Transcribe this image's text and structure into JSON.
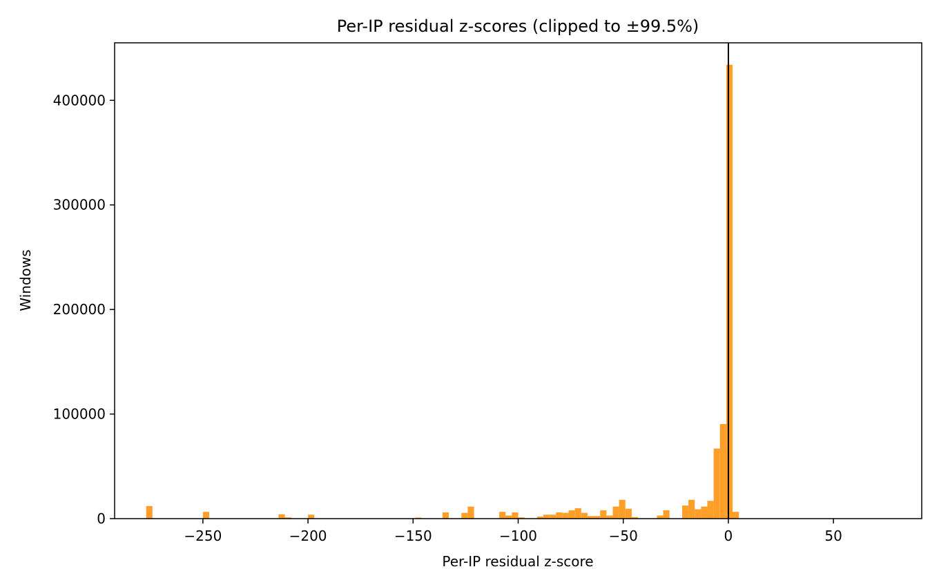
{
  "chart_data": {
    "type": "bar",
    "title": "Per-IP residual z-scores (clipped to ±99.5%)",
    "xlabel": "Per-IP residual z-score",
    "ylabel": "Windows",
    "xlim": [
      -292,
      92
    ],
    "ylim": [
      0,
      455000
    ],
    "xticks": [
      -250,
      -200,
      -150,
      -100,
      -50,
      0,
      50
    ],
    "xtick_labels": [
      "−250",
      "−200",
      "−150",
      "−100",
      "−50",
      "0",
      "50"
    ],
    "yticks": [
      0,
      100000,
      200000,
      300000,
      400000
    ],
    "ytick_labels": [
      "0",
      "100000",
      "200000",
      "300000",
      "400000"
    ],
    "bar_color": "#ff9f2a",
    "vline_x": 0,
    "vline_color": "#000000",
    "grid": false,
    "bin_width": 3.0,
    "bins": [
      {
        "x": -275.5,
        "value": 12000
      },
      {
        "x": -248.5,
        "value": 6500
      },
      {
        "x": -212.5,
        "value": 4200
      },
      {
        "x": -209.5,
        "value": 1200
      },
      {
        "x": -198.5,
        "value": 3800
      },
      {
        "x": -147.5,
        "value": 1000
      },
      {
        "x": -134.5,
        "value": 6000
      },
      {
        "x": -125.5,
        "value": 5500
      },
      {
        "x": -122.5,
        "value": 11500
      },
      {
        "x": -107.5,
        "value": 6500
      },
      {
        "x": -104.5,
        "value": 3000
      },
      {
        "x": -101.5,
        "value": 6000
      },
      {
        "x": -98.5,
        "value": 1200
      },
      {
        "x": -89.5,
        "value": 2000
      },
      {
        "x": -86.5,
        "value": 3800
      },
      {
        "x": -83.5,
        "value": 3800
      },
      {
        "x": -80.5,
        "value": 6000
      },
      {
        "x": -77.5,
        "value": 5500
      },
      {
        "x": -74.5,
        "value": 8000
      },
      {
        "x": -71.5,
        "value": 10000
      },
      {
        "x": -68.5,
        "value": 5500
      },
      {
        "x": -65.5,
        "value": 2500
      },
      {
        "x": -62.5,
        "value": 2500
      },
      {
        "x": -59.5,
        "value": 8000
      },
      {
        "x": -56.5,
        "value": 3000
      },
      {
        "x": -53.5,
        "value": 11500
      },
      {
        "x": -50.5,
        "value": 18000
      },
      {
        "x": -47.5,
        "value": 9500
      },
      {
        "x": -44.5,
        "value": 1500
      },
      {
        "x": -32.5,
        "value": 3000
      },
      {
        "x": -29.5,
        "value": 8000
      },
      {
        "x": -20.5,
        "value": 12500
      },
      {
        "x": -17.5,
        "value": 18000
      },
      {
        "x": -14.5,
        "value": 9000
      },
      {
        "x": -11.5,
        "value": 11500
      },
      {
        "x": -8.5,
        "value": 17000
      },
      {
        "x": -5.5,
        "value": 67000
      },
      {
        "x": -2.5,
        "value": 90500
      },
      {
        "x": 0.5,
        "value": 434000
      },
      {
        "x": 3.5,
        "value": 6500
      }
    ]
  }
}
